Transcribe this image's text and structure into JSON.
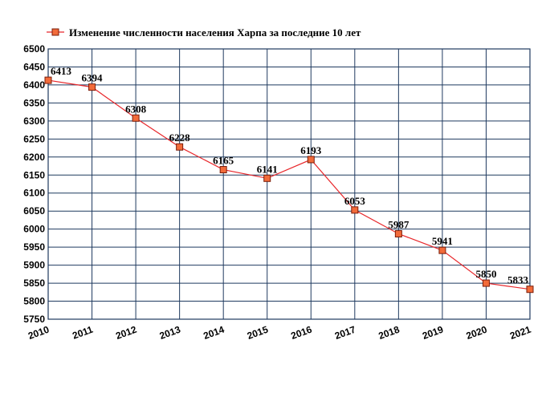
{
  "chart_data": {
    "type": "line",
    "title": "",
    "xlabel": "",
    "ylabel": "",
    "x": [
      "2010",
      "2011",
      "2012",
      "2013",
      "2014",
      "2015",
      "2016",
      "2017",
      "2018",
      "2019",
      "2020",
      "2021"
    ],
    "series": [
      {
        "name": "Изменение численности населения Харпа за последние 10 лет",
        "values": [
          6413,
          6394,
          6308,
          6228,
          6165,
          6141,
          6193,
          6053,
          5987,
          5941,
          5850,
          5833
        ]
      }
    ],
    "ylim": [
      5750,
      6500
    ],
    "yticks": [
      5750,
      5800,
      5850,
      5900,
      5950,
      6000,
      6050,
      6100,
      6150,
      6200,
      6250,
      6300,
      6350,
      6400,
      6450,
      6500
    ],
    "grid": true,
    "legend_position": "top-left",
    "colors": {
      "line": "#e8262a",
      "marker_fill": "#f26b3a",
      "marker_stroke": "#7a1d0a",
      "grid": "#1f3a5f"
    }
  }
}
